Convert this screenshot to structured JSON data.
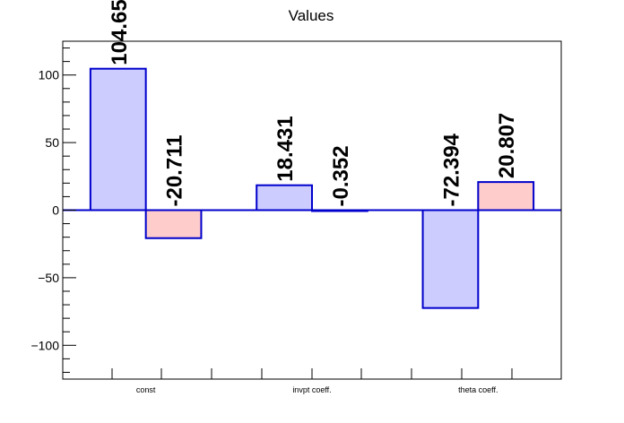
{
  "chart_data": {
    "type": "bar",
    "title": "Values",
    "xlabel": "",
    "ylabel": "",
    "ylim": [
      -125,
      125
    ],
    "yticks": [
      100,
      50,
      0,
      -50,
      -100
    ],
    "ytick_labels": [
      "100",
      "50",
      "0",
      "−50",
      "−100"
    ],
    "categories": [
      "const",
      "invpt coeff.",
      "theta coeff."
    ],
    "series": [
      {
        "values": [
          104.65,
          18.431,
          -72.394
        ],
        "labels": [
          "104.65",
          "18.431",
          "-72.394"
        ]
      },
      {
        "values": [
          -20.711,
          -0.352,
          20.807
        ],
        "labels": [
          "-20.711",
          "-0.352",
          "20.807"
        ]
      }
    ],
    "colors": {
      "series_fill": [
        "#ccccff",
        "#ffcccc"
      ],
      "bar_stroke": "#0000cc",
      "zero_line": "#0000cc",
      "frame": "#000000",
      "text": "#000000"
    },
    "grid": false,
    "legend": "none"
  }
}
